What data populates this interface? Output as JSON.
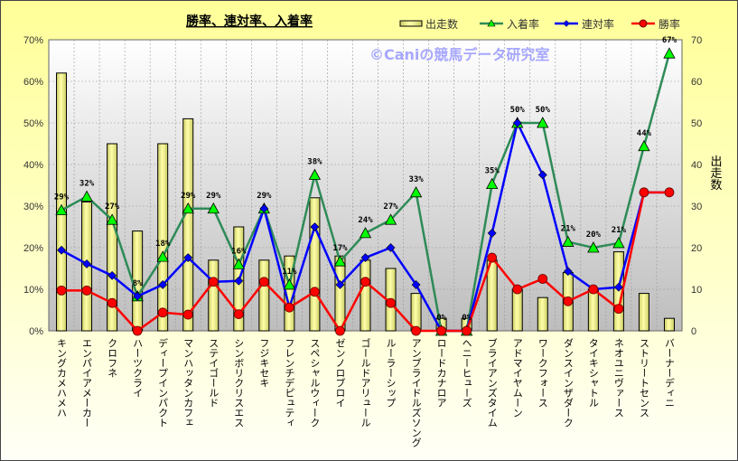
{
  "chart_data": {
    "type": "bar",
    "title": "勝率、連対率、入着率",
    "watermark": "©Caniの競馬データ研究室",
    "xlabel": "",
    "ylabel_left": "",
    "ylabel_right": "出走数",
    "ylim_left": [
      0,
      70
    ],
    "ylim_right": [
      0,
      70
    ],
    "left_ticks": [
      "0%",
      "10%",
      "20%",
      "30%",
      "40%",
      "50%",
      "60%",
      "70%"
    ],
    "right_ticks": [
      "0",
      "10",
      "20",
      "30",
      "40",
      "50",
      "60",
      "70"
    ],
    "grid": true,
    "legend_position": "top-right",
    "categories": [
      "キングカメハメハ",
      "エンパイアメーカー",
      "クロフネ",
      "ハーツクライ",
      "ディープインパクト",
      "マンハッタンカフェ",
      "ステイゴールド",
      "シンボリクリスエス",
      "フジキセキ",
      "フレンチデピュティ",
      "スペシャルウィーク",
      "ゼンノロブロイ",
      "ゴールドアリュール",
      "ルーラーシップ",
      "アンブライドルズソング",
      "ロードカナロア",
      "ヘニーヒューズ",
      "ブライアンズタイム",
      "アドマイヤムーン",
      "ワークフォース",
      "ダンスインザダーク",
      "タイキシャトル",
      "ネオユニヴァース",
      "ストリートセンス",
      "バーナーディニ"
    ],
    "series": [
      {
        "name": "出走数",
        "type": "bar",
        "axis": "right",
        "color": "#ffff99",
        "values": [
          62,
          31,
          45,
          24,
          45,
          51,
          17,
          25,
          17,
          18,
          32,
          18,
          17,
          15,
          9,
          3,
          3,
          17,
          10,
          8,
          14,
          10,
          19,
          9,
          3
        ]
      },
      {
        "name": "入着率",
        "type": "line",
        "axis": "left",
        "color": "#2e8b57",
        "marker": "triangle",
        "marker_color": "#00ff00",
        "values": [
          29,
          32.3,
          26.7,
          8.3,
          17.8,
          29.4,
          29.4,
          16,
          29.4,
          11.1,
          37.5,
          16.7,
          23.5,
          26.7,
          33.3,
          0,
          0,
          35.3,
          50,
          50,
          21.4,
          20,
          21.1,
          44.4,
          66.7
        ],
        "labels": [
          "29%",
          "32%",
          "27%",
          "8%",
          "18%",
          "29%",
          "29%",
          "16%",
          "29%",
          "11%",
          "38%",
          "17%",
          "24%",
          "27%",
          "33%",
          "0%",
          "0%",
          "35%",
          "50%",
          "50%",
          "21%",
          "20%",
          "21%",
          "44%",
          "67%"
        ]
      },
      {
        "name": "連対率",
        "type": "line",
        "axis": "left",
        "color": "#0000ff",
        "marker": "diamond",
        "values": [
          19.4,
          16.1,
          13.3,
          8.3,
          11.1,
          17.6,
          11.8,
          12,
          29.4,
          5.6,
          25,
          11.1,
          17.6,
          20,
          11.1,
          0,
          0,
          23.5,
          50,
          37.5,
          14.3,
          10,
          10.5,
          33.3,
          33.3
        ]
      },
      {
        "name": "勝率",
        "type": "line",
        "axis": "left",
        "color": "#ff0000",
        "marker": "circle",
        "values": [
          9.7,
          9.7,
          6.7,
          0,
          4.4,
          3.9,
          11.8,
          4,
          11.8,
          5.6,
          9.4,
          0,
          11.8,
          6.7,
          0,
          0,
          0,
          17.6,
          10,
          12.5,
          7.1,
          10,
          5.3,
          33.3,
          33.3
        ]
      }
    ]
  }
}
